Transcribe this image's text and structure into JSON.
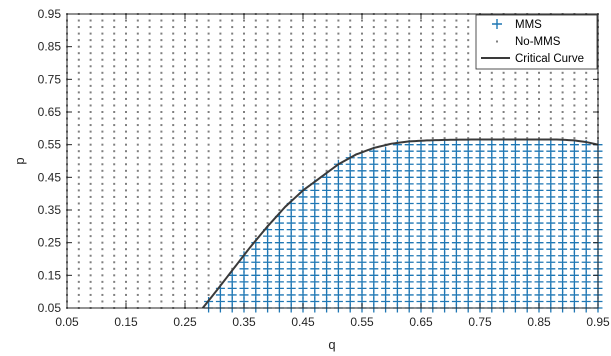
{
  "chart_data": {
    "type": "scatter",
    "title": "",
    "xlabel": "q",
    "ylabel": "p",
    "xlim": [
      0.05,
      0.95
    ],
    "ylim": [
      0.05,
      0.95
    ],
    "grid": false,
    "legend_position": "top-right",
    "x_ticks": [
      "0.05",
      "0.15",
      "0.25",
      "0.35",
      "0.45",
      "0.55",
      "0.65",
      "0.75",
      "0.85",
      "0.95"
    ],
    "y_ticks": [
      "0.05",
      "0.15",
      "0.25",
      "0.35",
      "0.45",
      "0.55",
      "0.65",
      "0.75",
      "0.85",
      "0.95"
    ],
    "grid_step": 0.02,
    "series": [
      {
        "name": "MMS",
        "marker": "+",
        "color": "#1f77b4",
        "rule": "points where p <= critical curve p(q)"
      },
      {
        "name": "No-MMS",
        "marker": ".",
        "color": "#7f7f7f",
        "rule": "points where p > critical curve p(q)"
      },
      {
        "name": "Critical Curve",
        "marker": "line",
        "color": "#3a3a3a",
        "x": [
          0.28,
          0.3,
          0.33,
          0.36,
          0.39,
          0.42,
          0.45,
          0.48,
          0.51,
          0.54,
          0.57,
          0.6,
          0.63,
          0.66,
          0.7,
          0.75,
          0.8,
          0.85,
          0.88,
          0.91,
          0.93,
          0.95
        ],
        "y": [
          0.05,
          0.095,
          0.165,
          0.235,
          0.3,
          0.36,
          0.41,
          0.45,
          0.49,
          0.52,
          0.54,
          0.553,
          0.56,
          0.563,
          0.565,
          0.566,
          0.566,
          0.566,
          0.566,
          0.563,
          0.558,
          0.55
        ]
      }
    ]
  }
}
